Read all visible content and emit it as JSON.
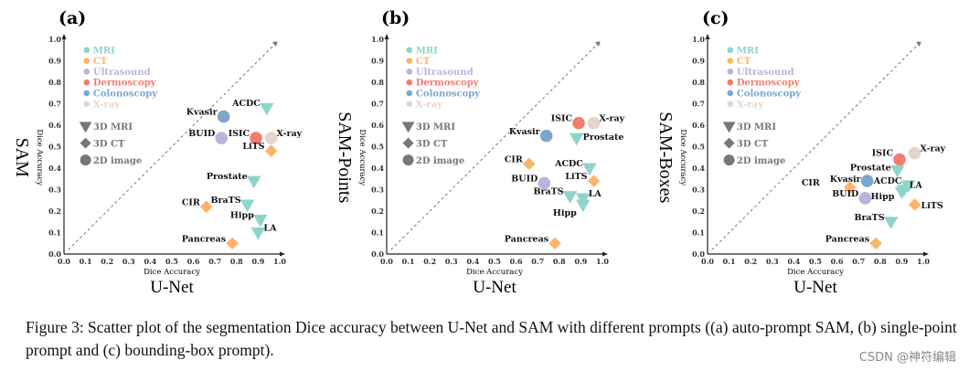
{
  "colors": {
    "MRI": "#8fd4c8",
    "CT": "#fdb46a",
    "Ultrasound": "#bcb3d9",
    "Dermoscopy": "#f47c6e",
    "Colonoscopy": "#7ba7cf",
    "X-ray": "#e3d5cd",
    "shape_legend": "#777777",
    "axis": "#222222"
  },
  "legend": {
    "modalities": [
      "MRI",
      "CT",
      "Ultrasound",
      "Dermoscopy",
      "Colonoscopy",
      "X-ray"
    ],
    "shapes": [
      {
        "label": "3D MRI",
        "shape": "triangle-down"
      },
      {
        "label": "3D CT",
        "shape": "diamond"
      },
      {
        "label": "2D image",
        "shape": "circle"
      }
    ]
  },
  "chart_data": [
    {
      "type": "scatter",
      "panel_label": "(a)",
      "ylabel_big": "SAM",
      "ylabel": "Dice Accuracy",
      "xlabel": "Dice Accuracy",
      "xlabel_big": "U-Net",
      "xlim": [
        0,
        1
      ],
      "ylim": [
        0,
        1
      ],
      "ticks": [
        "0.0",
        "0.1",
        "0.2",
        "0.3",
        "0.4",
        "0.5",
        "0.6",
        "0.7",
        "0.8",
        "0.9",
        "1.0"
      ],
      "diagonal": "y=x dashed",
      "points": [
        {
          "name": "ACDC",
          "x": 0.94,
          "y": 0.68,
          "modality": "MRI",
          "shape": "triangle-down"
        },
        {
          "name": "Kvasir",
          "x": 0.74,
          "y": 0.64,
          "modality": "Colonoscopy",
          "shape": "circle"
        },
        {
          "name": "BUID",
          "x": 0.73,
          "y": 0.54,
          "modality": "Ultrasound",
          "shape": "circle"
        },
        {
          "name": "ISIC",
          "x": 0.89,
          "y": 0.54,
          "modality": "Dermoscopy",
          "shape": "circle"
        },
        {
          "name": "X-ray",
          "x": 0.96,
          "y": 0.54,
          "modality": "X-ray",
          "shape": "circle"
        },
        {
          "name": "LiTS",
          "x": 0.96,
          "y": 0.48,
          "modality": "CT",
          "shape": "diamond"
        },
        {
          "name": "Prostate",
          "x": 0.88,
          "y": 0.34,
          "modality": "MRI",
          "shape": "triangle-down"
        },
        {
          "name": "BraTS",
          "x": 0.85,
          "y": 0.23,
          "modality": "MRI",
          "shape": "triangle-down"
        },
        {
          "name": "CIR",
          "x": 0.66,
          "y": 0.22,
          "modality": "CT",
          "shape": "diamond"
        },
        {
          "name": "Hipp",
          "x": 0.91,
          "y": 0.16,
          "modality": "MRI",
          "shape": "triangle-down"
        },
        {
          "name": "LA",
          "x": 0.9,
          "y": 0.1,
          "modality": "MRI",
          "shape": "triangle-down"
        },
        {
          "name": "Pancreas",
          "x": 0.78,
          "y": 0.05,
          "modality": "CT",
          "shape": "diamond"
        }
      ]
    },
    {
      "type": "scatter",
      "panel_label": "(b)",
      "ylabel_big": "SAM-Points",
      "ylabel": "Dice Accuracy",
      "xlabel": "Dice Accuracy",
      "xlabel_big": "U-Net",
      "xlim": [
        0,
        1
      ],
      "ylim": [
        0,
        1
      ],
      "ticks": [
        "0.0",
        "0.1",
        "0.2",
        "0.3",
        "0.4",
        "0.5",
        "0.6",
        "0.7",
        "0.8",
        "0.9",
        "1.0"
      ],
      "diagonal": "y=x dashed",
      "points": [
        {
          "name": "ISIC",
          "x": 0.89,
          "y": 0.61,
          "modality": "Dermoscopy",
          "shape": "circle"
        },
        {
          "name": "X-ray",
          "x": 0.96,
          "y": 0.61,
          "modality": "X-ray",
          "shape": "circle"
        },
        {
          "name": "Prostate",
          "x": 0.88,
          "y": 0.54,
          "modality": "MRI",
          "shape": "triangle-down"
        },
        {
          "name": "Kvasir",
          "x": 0.74,
          "y": 0.55,
          "modality": "Colonoscopy",
          "shape": "circle"
        },
        {
          "name": "CIR",
          "x": 0.66,
          "y": 0.42,
          "modality": "CT",
          "shape": "diamond"
        },
        {
          "name": "ACDC",
          "x": 0.94,
          "y": 0.4,
          "modality": "MRI",
          "shape": "triangle-down"
        },
        {
          "name": "LiTS",
          "x": 0.96,
          "y": 0.34,
          "modality": "CT",
          "shape": "diamond"
        },
        {
          "name": "BUID",
          "x": 0.73,
          "y": 0.33,
          "modality": "Ultrasound",
          "shape": "circle"
        },
        {
          "name": "BraTS",
          "x": 0.85,
          "y": 0.27,
          "modality": "MRI",
          "shape": "triangle-down"
        },
        {
          "name": "Hipp",
          "x": 0.91,
          "y": 0.23,
          "modality": "MRI",
          "shape": "triangle-down"
        },
        {
          "name": "LA",
          "x": 0.91,
          "y": 0.26,
          "modality": "MRI",
          "shape": "triangle-down"
        },
        {
          "name": "Pancreas",
          "x": 0.78,
          "y": 0.05,
          "modality": "CT",
          "shape": "diamond"
        }
      ]
    },
    {
      "type": "scatter",
      "panel_label": "(c)",
      "ylabel_big": "SAM-Boxes",
      "ylabel": "Dice Accuracy",
      "xlabel": "Dice Accuracy",
      "xlabel_big": "U-Net",
      "xlim": [
        0,
        1
      ],
      "ylim": [
        0,
        1
      ],
      "ticks": [
        "0.0",
        "0.1",
        "0.2",
        "0.3",
        "0.4",
        "0.5",
        "0.6",
        "0.7",
        "0.8",
        "0.9",
        "1.0"
      ],
      "diagonal": "y=x dashed",
      "points": [
        {
          "name": "X-ray",
          "x": 0.96,
          "y": 0.47,
          "modality": "X-ray",
          "shape": "circle"
        },
        {
          "name": "ISIC",
          "x": 0.89,
          "y": 0.44,
          "modality": "Dermoscopy",
          "shape": "circle"
        },
        {
          "name": "Prostate",
          "x": 0.88,
          "y": 0.39,
          "modality": "MRI",
          "shape": "triangle-down"
        },
        {
          "name": "Kvasir",
          "x": 0.74,
          "y": 0.34,
          "modality": "Colonoscopy",
          "shape": "circle"
        },
        {
          "name": "ACDC",
          "x": 0.93,
          "y": 0.32,
          "modality": "MRI",
          "shape": "triangle-down"
        },
        {
          "name": "CIR",
          "x": 0.66,
          "y": 0.31,
          "modality": "CT",
          "shape": "diamond"
        },
        {
          "name": "Hipp",
          "x": 0.9,
          "y": 0.29,
          "modality": "MRI",
          "shape": "triangle-down"
        },
        {
          "name": "LA",
          "x": 0.91,
          "y": 0.3,
          "modality": "MRI",
          "shape": "triangle-down"
        },
        {
          "name": "BUID",
          "x": 0.73,
          "y": 0.26,
          "modality": "Ultrasound",
          "shape": "circle"
        },
        {
          "name": "LiTS",
          "x": 0.96,
          "y": 0.23,
          "modality": "CT",
          "shape": "diamond"
        },
        {
          "name": "BraTS",
          "x": 0.85,
          "y": 0.15,
          "modality": "MRI",
          "shape": "triangle-down"
        },
        {
          "name": "Pancreas",
          "x": 0.78,
          "y": 0.05,
          "modality": "CT",
          "shape": "diamond"
        }
      ]
    }
  ],
  "caption": "Figure 3: Scatter plot of the segmentation Dice accuracy between U-Net and SAM with different prompts ((a) auto-prompt SAM, (b) single-point prompt and (c) bounding-box prompt).",
  "watermark": "CSDN @神符编辑"
}
